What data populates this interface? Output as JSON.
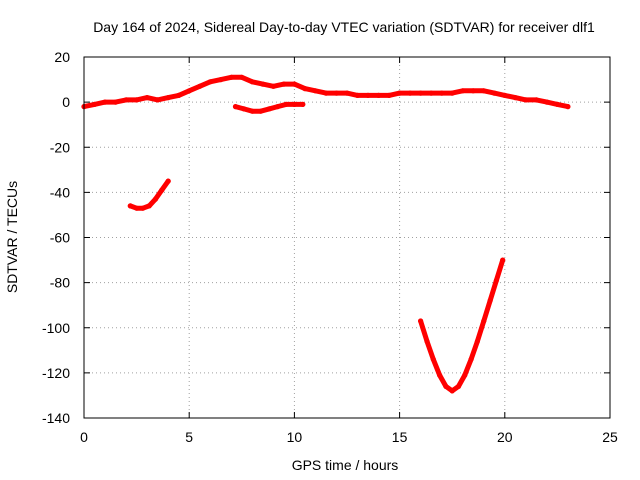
{
  "chart_data": {
    "type": "line",
    "title": "Day 164 of 2024, Sidereal Day-to-day VTEC variation (SDTVAR) for receiver dlf1",
    "xlabel": "GPS time / hours",
    "ylabel": "SDTVAR / TECUs",
    "xlim": [
      0,
      25
    ],
    "ylim": [
      -140,
      20
    ],
    "x_ticks": [
      0,
      5,
      10,
      15,
      20,
      25
    ],
    "y_ticks": [
      20,
      0,
      -20,
      -40,
      -60,
      -80,
      -100,
      -120,
      -140
    ],
    "grid": true,
    "legend": "none",
    "series_color": "#ff0000",
    "series": [
      {
        "x": [
          0.0,
          0.5,
          1.0,
          1.5,
          2.0,
          2.5,
          3.0,
          3.5,
          4.0,
          4.5,
          5.0,
          5.5,
          6.0,
          6.5,
          7.0,
          7.5,
          8.0,
          8.5,
          9.0,
          9.5,
          10.0,
          10.5,
          11.0,
          11.5,
          12.0,
          12.5,
          13.0,
          13.5,
          14.0,
          14.5,
          15.0,
          15.5,
          16.0,
          16.5,
          17.0,
          17.5,
          18.0,
          18.5,
          19.0,
          19.5,
          20.0,
          20.5,
          21.0,
          21.5,
          22.0,
          22.5,
          23.0
        ],
        "y": [
          -2,
          -1,
          0,
          0,
          1,
          1,
          2,
          1,
          2,
          3,
          5,
          7,
          9,
          10,
          11,
          11,
          9,
          8,
          7,
          8,
          8,
          6,
          5,
          4,
          4,
          4,
          3,
          3,
          3,
          3,
          4,
          4,
          4,
          4,
          4,
          4,
          5,
          5,
          5,
          4,
          3,
          2,
          1,
          1,
          0,
          -1,
          -2
        ]
      },
      {
        "x": [
          7.2,
          7.6,
          8.0,
          8.4,
          8.8,
          9.2,
          9.6,
          10.0,
          10.4
        ],
        "y": [
          -2,
          -3,
          -4,
          -4,
          -3,
          -2,
          -1,
          -1,
          -1
        ]
      },
      {
        "x": [
          2.2,
          2.5,
          2.8,
          3.1,
          3.4,
          3.7,
          4.0
        ],
        "y": [
          -46,
          -47,
          -47,
          -46,
          -43,
          -39,
          -35
        ]
      },
      {
        "x": [
          16.0,
          16.3,
          16.6,
          16.9,
          17.2,
          17.5,
          17.8,
          18.1,
          18.4,
          18.7,
          19.0,
          19.3,
          19.6,
          19.9
        ],
        "y": [
          -97,
          -106,
          -114,
          -121,
          -126,
          -128,
          -126,
          -121,
          -114,
          -106,
          -97,
          -88,
          -79,
          -70
        ]
      }
    ]
  }
}
